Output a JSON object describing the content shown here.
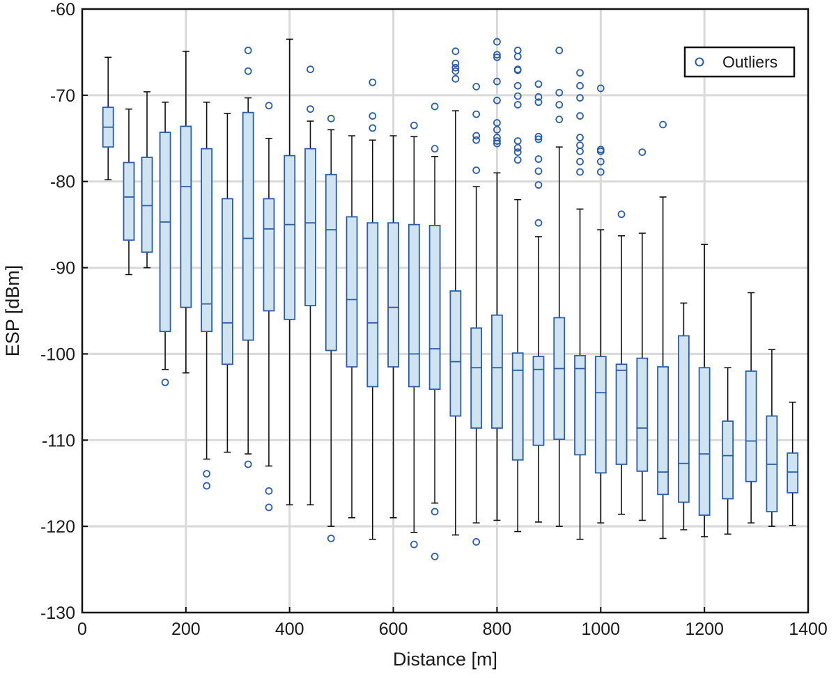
{
  "chart_data": {
    "type": "boxplot",
    "xlabel": "Distance [m]",
    "ylabel": "ESP [dBm]",
    "xlim": [
      0,
      1400
    ],
    "ylim": [
      -130,
      -60
    ],
    "xticks": [
      0,
      200,
      400,
      600,
      800,
      1000,
      1200,
      1400
    ],
    "yticks": [
      -130,
      -120,
      -110,
      -100,
      -90,
      -80,
      -70,
      -60
    ],
    "grid": true,
    "legend": {
      "position": "top-right",
      "entries": [
        "Outliers"
      ]
    },
    "colors": {
      "box_fill": "#cfe3f1",
      "box_edge": "#2b5ea8",
      "whisker": "#111111",
      "outlier": "#2b5ea8",
      "grid": "#d9d9d9"
    },
    "boxes": [
      {
        "x": 50,
        "whisker_low": -79.8,
        "q1": -76.0,
        "median": -73.7,
        "q3": -71.4,
        "whisker_high": -65.6,
        "outliers": []
      },
      {
        "x": 90,
        "whisker_low": -90.8,
        "q1": -86.8,
        "median": -81.8,
        "q3": -77.8,
        "whisker_high": -71.6,
        "outliers": []
      },
      {
        "x": 125,
        "whisker_low": -90.0,
        "q1": -88.2,
        "median": -82.8,
        "q3": -77.2,
        "whisker_high": -69.6,
        "outliers": []
      },
      {
        "x": 160,
        "whisker_low": -101.8,
        "q1": -97.4,
        "median": -84.7,
        "q3": -74.3,
        "whisker_high": -70.8,
        "outliers": [
          -103.3
        ]
      },
      {
        "x": 200,
        "whisker_low": -102.2,
        "q1": -94.6,
        "median": -80.6,
        "q3": -73.6,
        "whisker_high": -64.9,
        "outliers": []
      },
      {
        "x": 240,
        "whisker_low": -112.2,
        "q1": -97.4,
        "median": -94.2,
        "q3": -76.2,
        "whisker_high": -70.8,
        "outliers": [
          -113.9,
          -115.3
        ]
      },
      {
        "x": 280,
        "whisker_low": -111.4,
        "q1": -101.2,
        "median": -96.4,
        "q3": -82.0,
        "whisker_high": -72.1,
        "outliers": []
      },
      {
        "x": 320,
        "whisker_low": -111.6,
        "q1": -98.4,
        "median": -86.6,
        "q3": -72.0,
        "whisker_high": -70.3,
        "outliers": [
          -112.8,
          -64.8,
          -67.2
        ]
      },
      {
        "x": 360,
        "whisker_low": -113.0,
        "q1": -95.0,
        "median": -85.5,
        "q3": -82.0,
        "whisker_high": -75.0,
        "outliers": [
          -115.9,
          -117.8,
          -71.2
        ]
      },
      {
        "x": 400,
        "whisker_low": -117.5,
        "q1": -96.0,
        "median": -85.0,
        "q3": -77.0,
        "whisker_high": -63.5,
        "outliers": []
      },
      {
        "x": 440,
        "whisker_low": -117.5,
        "q1": -94.4,
        "median": -84.8,
        "q3": -76.2,
        "whisker_high": -73.0,
        "outliers": [
          -67.0,
          -71.6
        ]
      },
      {
        "x": 480,
        "whisker_low": -120.0,
        "q1": -99.6,
        "median": -85.6,
        "q3": -79.2,
        "whisker_high": -74.0,
        "outliers": [
          -121.4,
          -72.7
        ]
      },
      {
        "x": 520,
        "whisker_low": -119.0,
        "q1": -101.5,
        "median": -93.7,
        "q3": -84.1,
        "whisker_high": -74.7,
        "outliers": []
      },
      {
        "x": 560,
        "whisker_low": -121.5,
        "q1": -103.8,
        "median": -96.4,
        "q3": -84.8,
        "whisker_high": -75.2,
        "outliers": [
          -68.5,
          -72.4,
          -73.8
        ]
      },
      {
        "x": 600,
        "whisker_low": -119.0,
        "q1": -101.5,
        "median": -94.6,
        "q3": -84.8,
        "whisker_high": -74.7,
        "outliers": []
      },
      {
        "x": 640,
        "whisker_low": -120.7,
        "q1": -103.8,
        "median": -100.0,
        "q3": -85.0,
        "whisker_high": -74.8,
        "outliers": [
          -122.1,
          -73.5
        ]
      },
      {
        "x": 680,
        "whisker_low": -117.3,
        "q1": -104.1,
        "median": -99.4,
        "q3": -85.1,
        "whisker_high": -77.1,
        "outliers": [
          -118.3,
          -123.5,
          -71.3,
          -76.2
        ]
      },
      {
        "x": 720,
        "whisker_low": -121.0,
        "q1": -107.2,
        "median": -100.9,
        "q3": -92.7,
        "whisker_high": -71.8,
        "outliers": [
          -64.9,
          -66.3,
          -66.8,
          -67.2,
          -68.1
        ]
      },
      {
        "x": 760,
        "whisker_low": -119.6,
        "q1": -108.6,
        "median": -101.6,
        "q3": -97.0,
        "whisker_high": -80.6,
        "outliers": [
          -121.8,
          -69.0,
          -72.2,
          -74.7,
          -75.2,
          -78.7
        ]
      },
      {
        "x": 800,
        "whisker_low": -119.3,
        "q1": -108.6,
        "median": -101.6,
        "q3": -95.5,
        "whisker_high": -79.0,
        "outliers": [
          -63.8,
          -65.3,
          -65.6,
          -68.4,
          -70.6,
          -73.2,
          -74.0,
          -74.9,
          -75.3,
          -75.6
        ]
      },
      {
        "x": 840,
        "whisker_low": -120.6,
        "q1": -112.3,
        "median": -101.9,
        "q3": -99.9,
        "whisker_high": -82.1,
        "outliers": [
          -64.8,
          -65.5,
          -67.0,
          -67.1,
          -68.9,
          -70.1,
          -71.1,
          -75.3,
          -76.1,
          -76.6,
          -77.5
        ]
      },
      {
        "x": 880,
        "whisker_low": -119.5,
        "q1": -110.6,
        "median": -101.8,
        "q3": -100.3,
        "whisker_high": -86.4,
        "outliers": [
          -68.7,
          -70.2,
          -70.8,
          -74.8,
          -75.1,
          -77.4,
          -78.8,
          -80.4,
          -84.8
        ]
      },
      {
        "x": 920,
        "whisker_low": -120.0,
        "q1": -109.9,
        "median": -101.7,
        "q3": -95.8,
        "whisker_high": -76.0,
        "outliers": [
          -64.8,
          -69.7,
          -71.1,
          -72.8
        ]
      },
      {
        "x": 960,
        "whisker_low": -121.5,
        "q1": -111.7,
        "median": -101.7,
        "q3": -100.2,
        "whisker_high": -83.2,
        "outliers": [
          -67.4,
          -68.9,
          -70.3,
          -72.4,
          -74.9,
          -75.8,
          -76.5,
          -77.7,
          -78.9
        ]
      },
      {
        "x": 1000,
        "whisker_low": -119.6,
        "q1": -113.8,
        "median": -104.5,
        "q3": -100.3,
        "whisker_high": -85.6,
        "outliers": [
          -69.2,
          -76.3,
          -76.5,
          -77.7,
          -78.9
        ]
      },
      {
        "x": 1040,
        "whisker_low": -118.6,
        "q1": -112.8,
        "median": -101.9,
        "q3": -101.2,
        "whisker_high": -86.3,
        "outliers": [
          -83.8
        ]
      },
      {
        "x": 1080,
        "whisker_low": -119.3,
        "q1": -113.6,
        "median": -108.6,
        "q3": -100.5,
        "whisker_high": -86.0,
        "outliers": [
          -76.6
        ]
      },
      {
        "x": 1120,
        "whisker_low": -121.4,
        "q1": -116.3,
        "median": -113.7,
        "q3": -101.5,
        "whisker_high": -81.8,
        "outliers": [
          -73.4
        ]
      },
      {
        "x": 1160,
        "whisker_low": -120.4,
        "q1": -117.2,
        "median": -112.7,
        "q3": -97.9,
        "whisker_high": -94.1,
        "outliers": []
      },
      {
        "x": 1200,
        "whisker_low": -121.2,
        "q1": -118.7,
        "median": -111.6,
        "q3": -101.6,
        "whisker_high": -87.3,
        "outliers": []
      },
      {
        "x": 1245,
        "whisker_low": -120.9,
        "q1": -116.8,
        "median": -111.8,
        "q3": -107.8,
        "whisker_high": -101.6,
        "outliers": []
      },
      {
        "x": 1290,
        "whisker_low": -119.6,
        "q1": -114.8,
        "median": -110.1,
        "q3": -102.0,
        "whisker_high": -92.9,
        "outliers": []
      },
      {
        "x": 1330,
        "whisker_low": -120.0,
        "q1": -118.3,
        "median": -112.8,
        "q3": -107.2,
        "whisker_high": -99.5,
        "outliers": []
      },
      {
        "x": 1370,
        "whisker_low": -119.9,
        "q1": -116.1,
        "median": -113.7,
        "q3": -111.5,
        "whisker_high": -105.6,
        "outliers": []
      }
    ]
  }
}
